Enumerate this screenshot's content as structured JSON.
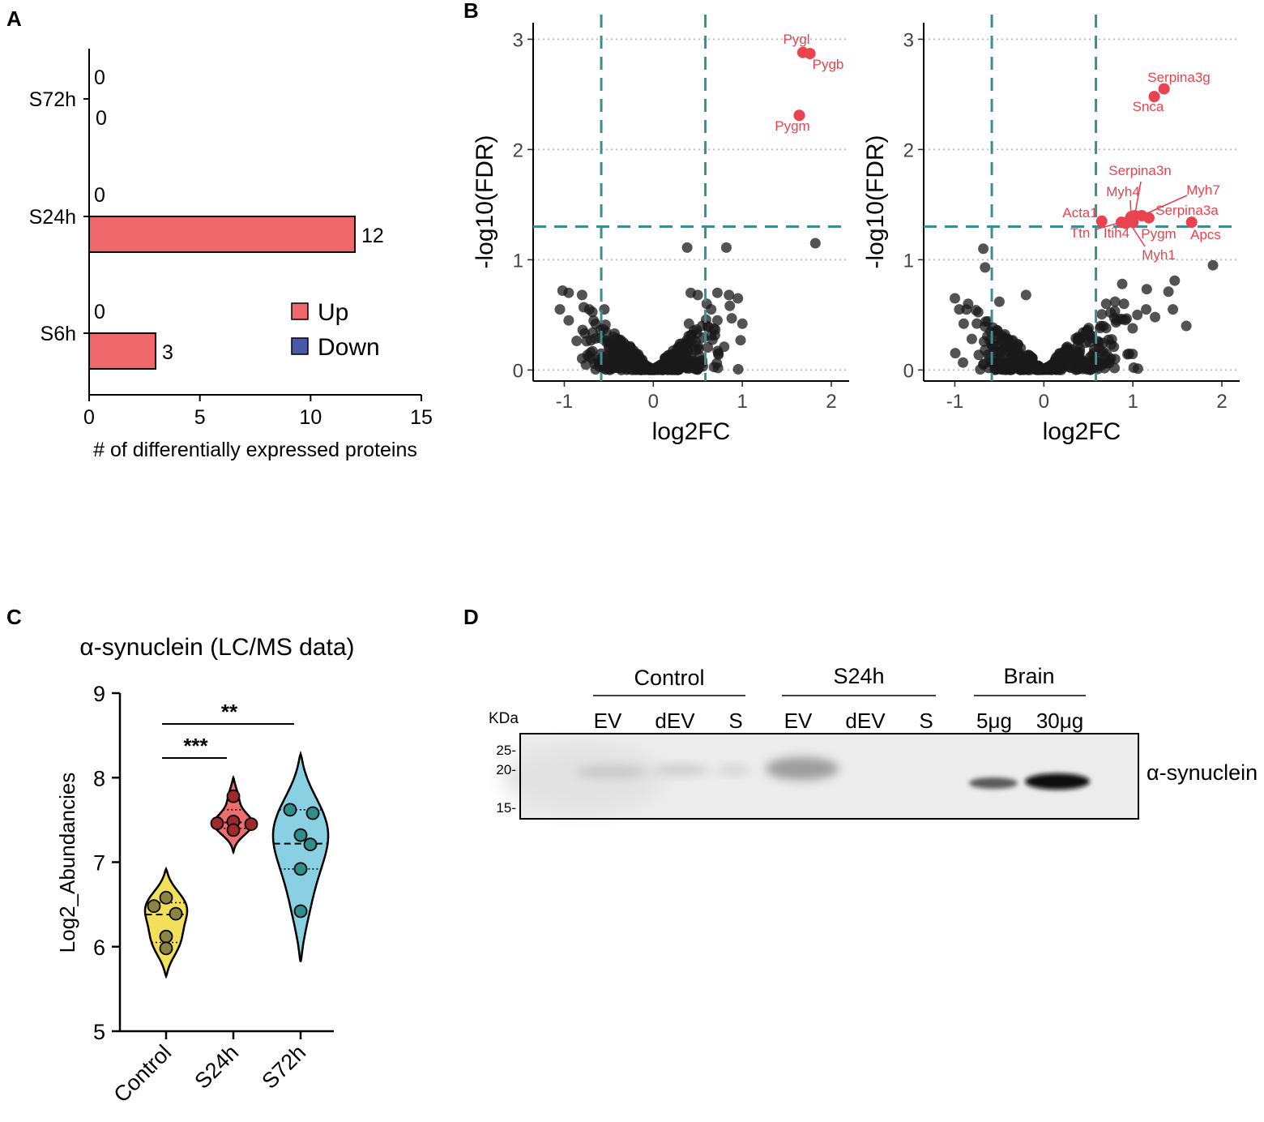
{
  "colors": {
    "up": "#F0676B",
    "down": "#4A58A8",
    "dashed": "#3D8E93",
    "point": "#1A1A1A",
    "label_red": "#E8434F",
    "violin_control": "#F2E05A",
    "violin_s24h": "#EE6E70",
    "violin_s72h": "#88D0E2",
    "dot_control": "#8C8440",
    "dot_s24h": "#9E2A2C",
    "dot_s72h": "#2F8E8C"
  },
  "panels": {
    "A": "A",
    "B": "B",
    "C": "C",
    "D": "D"
  },
  "chart_data": [
    {
      "id": "A",
      "type": "bar",
      "orientation": "horizontal",
      "categories": [
        "S72h",
        "S24h",
        "S6h"
      ],
      "series": [
        {
          "name": "Up",
          "values": [
            0,
            12,
            3
          ]
        },
        {
          "name": "Down",
          "values": [
            0,
            0,
            0
          ]
        }
      ],
      "xlabel": "# of differentially expressed proteins",
      "xlim": [
        0,
        15
      ],
      "xticks": [
        0,
        5,
        10,
        15
      ],
      "legend": {
        "position": "bottom-right",
        "items": [
          "Up",
          "Down"
        ]
      }
    },
    {
      "id": "B1",
      "type": "scatter",
      "xlabel": "log2FC",
      "ylabel": "-log10(FDR)",
      "xlim": [
        -1.35,
        2.2
      ],
      "ylim": [
        -0.1,
        3.15
      ],
      "xticks": [
        -1,
        0,
        1,
        2
      ],
      "yticks": [
        0,
        1,
        2,
        3
      ],
      "xticklabels": [
        "-1",
        "0",
        "1",
        "2"
      ],
      "yticklabels": [
        "0",
        "1",
        "2",
        "3"
      ],
      "thresholds": {
        "vlines": [
          -0.585,
          0.585
        ],
        "hline": 1.301
      },
      "significant": [
        {
          "label": "Pygl",
          "x": 1.68,
          "y": 2.88
        },
        {
          "label": "Pygb",
          "x": 1.76,
          "y": 2.87
        },
        {
          "label": "Pygm",
          "x": 1.64,
          "y": 2.31
        }
      ],
      "nonsig_notable": [
        {
          "x": 0.38,
          "y": 1.11
        },
        {
          "x": 0.82,
          "y": 1.11
        },
        {
          "x": 1.82,
          "y": 1.15
        }
      ]
    },
    {
      "id": "B2",
      "type": "scatter",
      "xlabel": "log2FC",
      "ylabel": "-log10(FDR)",
      "xlim": [
        -1.35,
        2.2
      ],
      "ylim": [
        -0.1,
        3.15
      ],
      "xticks": [
        -1,
        0,
        1,
        2
      ],
      "yticks": [
        0,
        1,
        2,
        3
      ],
      "xticklabels": [
        "-1",
        "0",
        "1",
        "2"
      ],
      "yticklabels": [
        "0",
        "1",
        "2",
        "3"
      ],
      "thresholds": {
        "vlines": [
          -0.585,
          0.585
        ],
        "hline": 1.301
      },
      "significant": [
        {
          "label": "Serpina3g",
          "x": 1.35,
          "y": 2.55
        },
        {
          "label": "Snca",
          "x": 1.24,
          "y": 2.48
        },
        {
          "label": "Serpina3n",
          "x": 1.02,
          "y": 1.4
        },
        {
          "label": "Myh4",
          "x": 0.98,
          "y": 1.39
        },
        {
          "label": "Myh7",
          "x": 1.1,
          "y": 1.4
        },
        {
          "label": "Serpina3a",
          "x": 1.18,
          "y": 1.38
        },
        {
          "label": "Acta1",
          "x": 0.65,
          "y": 1.35
        },
        {
          "label": "Ttn",
          "x": 0.87,
          "y": 1.34
        },
        {
          "label": "Itih4",
          "x": 0.92,
          "y": 1.33
        },
        {
          "label": "Pygm",
          "x": 1.0,
          "y": 1.34
        },
        {
          "label": "Myh1",
          "x": 0.95,
          "y": 1.35
        },
        {
          "label": "Apcs",
          "x": 1.66,
          "y": 1.34
        }
      ],
      "nonsig_notable": [
        {
          "x": -0.68,
          "y": 1.1
        },
        {
          "x": -0.66,
          "y": 0.93
        },
        {
          "x": 1.9,
          "y": 0.95
        },
        {
          "x": 1.47,
          "y": 0.81
        },
        {
          "x": 1.4,
          "y": 0.71
        }
      ]
    },
    {
      "id": "C",
      "type": "violin",
      "title": "α-synuclein (LC/MS data)",
      "ylabel": "Log2_Abundancies",
      "ylim": [
        5,
        9
      ],
      "yticks": [
        5,
        6,
        7,
        8,
        9
      ],
      "groups": [
        {
          "name": "Control",
          "points": [
            6.58,
            6.48,
            6.39,
            6.12,
            5.98
          ],
          "median": 6.38,
          "q1": 6.05,
          "q3": 6.52,
          "min": 5.65,
          "max": 6.92
        },
        {
          "name": "S24h",
          "points": [
            7.78,
            7.48,
            7.46,
            7.38,
            7.45
          ],
          "median": 7.47,
          "q1": 7.4,
          "q3": 7.62,
          "min": 7.12,
          "max": 8.0
        },
        {
          "name": "S72h",
          "points": [
            7.62,
            7.58,
            7.32,
            7.21,
            6.92,
            6.42
          ],
          "median": 7.22,
          "q1": 6.92,
          "q3": 7.62,
          "min": 5.82,
          "max": 8.28
        }
      ],
      "significance": [
        {
          "from": "Control",
          "to": "S24h",
          "label": "***"
        },
        {
          "from": "Control",
          "to": "S72h",
          "label": "**"
        }
      ]
    }
  ],
  "blot": {
    "kda_label": "KDa",
    "markers": [
      "25-",
      "20-",
      "15-"
    ],
    "groups": [
      "Control",
      "S24h",
      "Brain"
    ],
    "lanes": [
      "EV",
      "dEV",
      "S",
      "EV",
      "dEV",
      "S",
      "5μg",
      "30μg"
    ],
    "band_label": "α-synuclein"
  }
}
